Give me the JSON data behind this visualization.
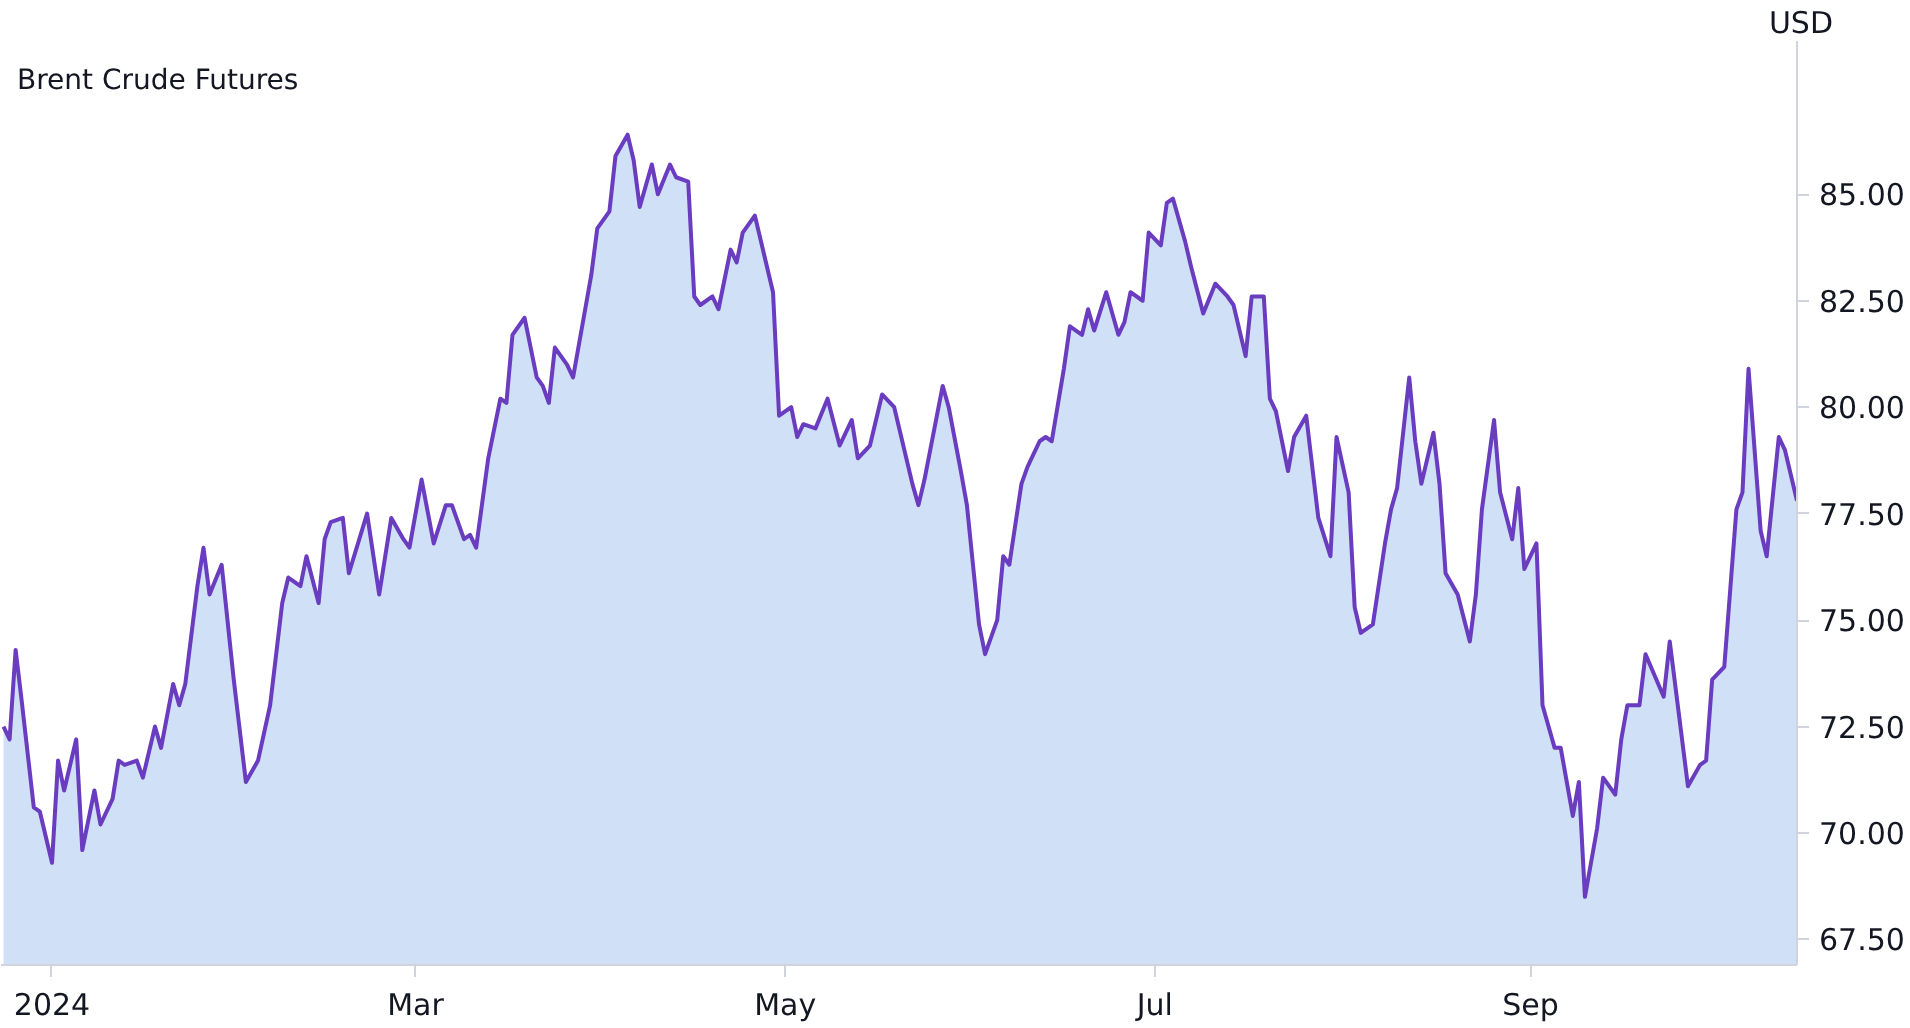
{
  "chart_data": {
    "type": "area",
    "title": "Brent Crude Futures",
    "ylabel": "USD",
    "grid": false,
    "marker": "none",
    "line_style": "solid",
    "xlim": [
      "2023-12-23T14:00",
      "2024-10-15"
    ],
    "ylim": [
      66.9,
      88.6
    ],
    "xticks": [
      {
        "value": "2024-01-01",
        "label": "2024"
      },
      {
        "value": "2024-03-01",
        "label": "Mar"
      },
      {
        "value": "2024-05-01",
        "label": "May"
      },
      {
        "value": "2024-07-01",
        "label": "Jul"
      },
      {
        "value": "2024-09-01",
        "label": "Sep"
      }
    ],
    "yticks": [
      {
        "value": 67.5,
        "label": "67.50"
      },
      {
        "value": 70,
        "label": "70.00"
      },
      {
        "value": 72.5,
        "label": "72.50"
      },
      {
        "value": 75,
        "label": "75.00"
      },
      {
        "value": 77.5,
        "label": "77.50"
      },
      {
        "value": 80,
        "label": "80.00"
      },
      {
        "value": 82.5,
        "label": "82.50"
      },
      {
        "value": 85,
        "label": "85.00"
      }
    ],
    "x": [
      "2023-12-24",
      "2023-12-25",
      "2023-12-26",
      "2023-12-27",
      "2023-12-29",
      "2023-12-30",
      "2024-01-01",
      "2024-01-02",
      "2024-01-03",
      "2024-01-05",
      "2024-01-06",
      "2024-01-08",
      "2024-01-09",
      "2024-01-11",
      "2024-01-12",
      "2024-01-13",
      "2024-01-15",
      "2024-01-16",
      "2024-01-18",
      "2024-01-19",
      "2024-01-21",
      "2024-01-22",
      "2024-01-23",
      "2024-01-25",
      "2024-01-26",
      "2024-01-27",
      "2024-01-29",
      "2024-01-31",
      "2024-02-02",
      "2024-02-04",
      "2024-02-06",
      "2024-02-08",
      "2024-02-09",
      "2024-02-11",
      "2024-02-12",
      "2024-02-14",
      "2024-02-15",
      "2024-02-16",
      "2024-02-18",
      "2024-02-19",
      "2024-02-22",
      "2024-02-24",
      "2024-02-26",
      "2024-02-28",
      "2024-02-29",
      "2024-03-02",
      "2024-03-04",
      "2024-03-06",
      "2024-03-07",
      "2024-03-09",
      "2024-03-10",
      "2024-03-11",
      "2024-03-13",
      "2024-03-15",
      "2024-03-16",
      "2024-03-17",
      "2024-03-19",
      "2024-03-21",
      "2024-03-22",
      "2024-03-23",
      "2024-03-24",
      "2024-03-26",
      "2024-03-27",
      "2024-03-29",
      "2024-03-30",
      "2024-03-31",
      "2024-04-02",
      "2024-04-03",
      "2024-04-05",
      "2024-04-06",
      "2024-04-07",
      "2024-04-09",
      "2024-04-10",
      "2024-04-12",
      "2024-04-13",
      "2024-04-15",
      "2024-04-16",
      "2024-04-17",
      "2024-04-19",
      "2024-04-20",
      "2024-04-22",
      "2024-04-23",
      "2024-04-24",
      "2024-04-26",
      "2024-04-29",
      "2024-04-30",
      "2024-05-02",
      "2024-05-03",
      "2024-05-04",
      "2024-05-06",
      "2024-05-08",
      "2024-05-10",
      "2024-05-12",
      "2024-05-13",
      "2024-05-15",
      "2024-05-17",
      "2024-05-19",
      "2024-05-22",
      "2024-05-23",
      "2024-05-24",
      "2024-05-27",
      "2024-05-28",
      "2024-05-30",
      "2024-05-31",
      "2024-06-02",
      "2024-06-03",
      "2024-06-05",
      "2024-06-06",
      "2024-06-07",
      "2024-06-09",
      "2024-06-10",
      "2024-06-12",
      "2024-06-13",
      "2024-06-14",
      "2024-06-16",
      "2024-06-17",
      "2024-06-19",
      "2024-06-20",
      "2024-06-21",
      "2024-06-23",
      "2024-06-25",
      "2024-06-26",
      "2024-06-27",
      "2024-06-29",
      "2024-06-30",
      "2024-07-02",
      "2024-07-03",
      "2024-07-04",
      "2024-07-06",
      "2024-07-07",
      "2024-07-09",
      "2024-07-11",
      "2024-07-13",
      "2024-07-14",
      "2024-07-16",
      "2024-07-17",
      "2024-07-19",
      "2024-07-20",
      "2024-07-21",
      "2024-07-23",
      "2024-07-24",
      "2024-07-26",
      "2024-07-28",
      "2024-07-30",
      "2024-07-31",
      "2024-08-02",
      "2024-08-03",
      "2024-08-04",
      "2024-08-06",
      "2024-08-08",
      "2024-08-09",
      "2024-08-10",
      "2024-08-12",
      "2024-08-13",
      "2024-08-14",
      "2024-08-16",
      "2024-08-17",
      "2024-08-18",
      "2024-08-20",
      "2024-08-22",
      "2024-08-23",
      "2024-08-24",
      "2024-08-26",
      "2024-08-27",
      "2024-08-29",
      "2024-08-30",
      "2024-08-31",
      "2024-09-02",
      "2024-09-03",
      "2024-09-05",
      "2024-09-06",
      "2024-09-08",
      "2024-09-09",
      "2024-09-10",
      "2024-09-12",
      "2024-09-13",
      "2024-09-15",
      "2024-09-16",
      "2024-09-17",
      "2024-09-19",
      "2024-09-20",
      "2024-09-23",
      "2024-09-24",
      "2024-09-27",
      "2024-09-29",
      "2024-09-30",
      "2024-10-01",
      "2024-10-03",
      "2024-10-05",
      "2024-10-06",
      "2024-10-07",
      "2024-10-09",
      "2024-10-10",
      "2024-10-12",
      "2024-10-13",
      "2024-10-15"
    ],
    "series": [
      {
        "color": "#6a3cc0",
        "values": [
          72.5,
          72.2,
          74.3,
          73.1,
          70.6,
          70.5,
          69.3,
          71.7,
          71.0,
          72.2,
          69.6,
          71.0,
          70.2,
          70.8,
          71.7,
          71.6,
          71.7,
          71.3,
          72.5,
          72.0,
          73.5,
          73.0,
          73.5,
          75.8,
          76.7,
          75.6,
          76.3,
          73.6,
          71.2,
          71.7,
          73.0,
          75.4,
          76.0,
          75.8,
          76.5,
          75.4,
          76.9,
          77.3,
          77.4,
          76.1,
          77.5,
          75.6,
          77.4,
          76.9,
          76.7,
          78.3,
          76.8,
          77.7,
          77.7,
          76.9,
          77.0,
          76.7,
          78.8,
          80.2,
          80.1,
          81.7,
          82.1,
          80.7,
          80.5,
          80.1,
          81.4,
          81.0,
          80.7,
          82.3,
          83.1,
          84.2,
          84.6,
          85.9,
          86.4,
          85.8,
          84.7,
          85.7,
          85.0,
          85.7,
          85.4,
          85.3,
          82.6,
          82.4,
          82.6,
          82.3,
          83.7,
          83.4,
          84.1,
          84.5,
          82.7,
          79.8,
          80.0,
          79.3,
          79.6,
          79.5,
          80.2,
          79.1,
          79.7,
          78.8,
          79.1,
          80.3,
          80.0,
          78.2,
          77.7,
          78.3,
          80.5,
          80.0,
          78.5,
          77.7,
          74.9,
          74.2,
          75.0,
          76.5,
          76.3,
          78.2,
          78.6,
          79.2,
          79.3,
          79.2,
          80.9,
          81.9,
          81.7,
          82.3,
          81.8,
          82.7,
          81.7,
          82.0,
          82.7,
          82.5,
          84.1,
          83.8,
          84.8,
          84.9,
          83.9,
          83.3,
          82.2,
          82.9,
          82.6,
          82.4,
          81.2,
          82.6,
          82.6,
          80.2,
          79.9,
          78.5,
          79.3,
          79.8,
          77.4,
          76.5,
          79.3,
          78.0,
          75.3,
          74.7,
          74.9,
          76.8,
          77.6,
          78.1,
          80.7,
          79.2,
          78.2,
          79.4,
          78.2,
          76.1,
          75.6,
          74.5,
          75.6,
          77.6,
          79.7,
          78.0,
          76.9,
          78.1,
          76.2,
          76.8,
          73.0,
          72.0,
          72.0,
          70.4,
          71.2,
          68.5,
          70.1,
          71.3,
          70.9,
          72.2,
          73.0,
          73.0,
          74.2,
          73.2,
          74.5,
          71.1,
          71.6,
          71.7,
          73.6,
          73.9,
          77.6,
          78.0,
          80.9,
          77.1,
          76.5,
          79.3,
          79.0,
          77.8
        ]
      }
    ]
  }
}
